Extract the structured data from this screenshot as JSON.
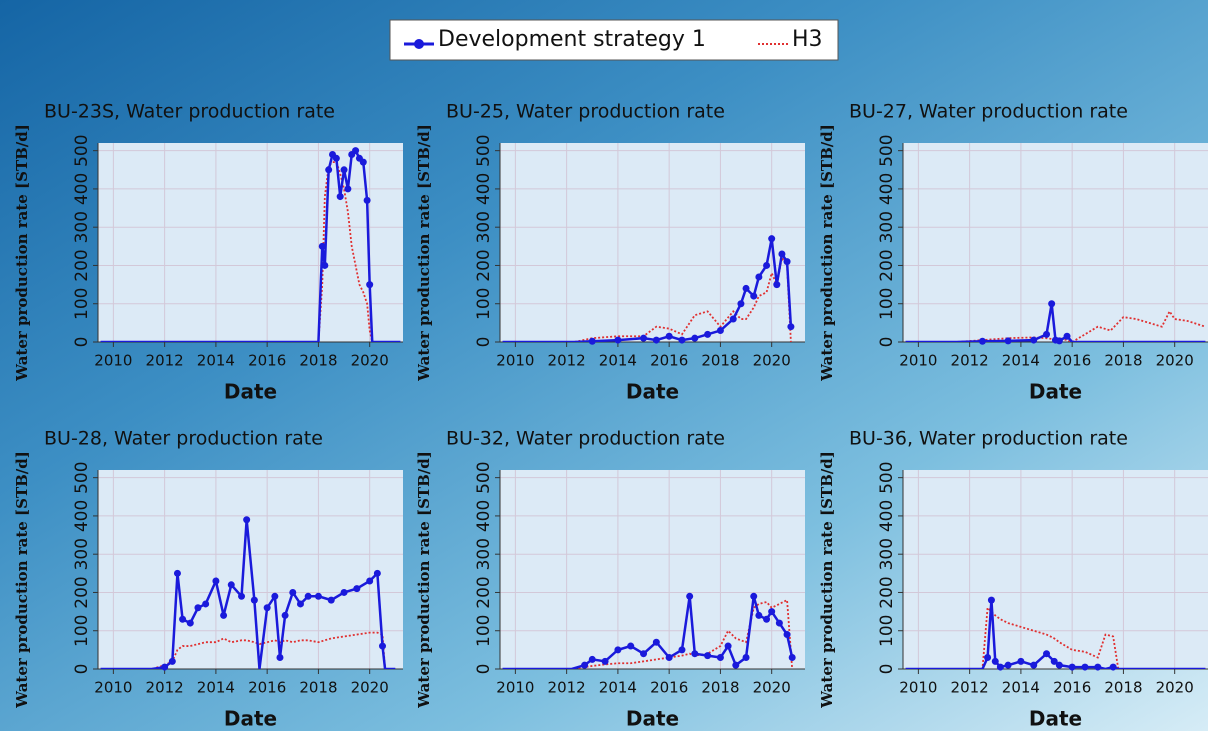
{
  "chart_data": [
    {
      "type": "line",
      "title": "BU-23S, Water production rate",
      "xlabel": "Date",
      "ylabel": "Water production rate [STB/d]",
      "x": [
        2009.5,
        2018.0,
        2018.15,
        2018.25,
        2018.4,
        2018.55,
        2018.7,
        2018.85,
        2019.0,
        2019.15,
        2019.3,
        2019.45,
        2019.6,
        2019.75,
        2019.9,
        2020.0,
        2020.1,
        2021.2
      ],
      "series": [
        {
          "name": "Development strategy 1",
          "color": "#1a1adb",
          "values": [
            0,
            0,
            250,
            200,
            450,
            490,
            480,
            380,
            450,
            400,
            490,
            500,
            480,
            470,
            370,
            150,
            0,
            0
          ]
        },
        {
          "name": "H3",
          "color": "#e03030",
          "values": [
            0,
            0,
            150,
            380,
            460,
            470,
            470,
            440,
            400,
            340,
            250,
            200,
            150,
            130,
            100,
            30,
            0,
            0
          ]
        }
      ],
      "xlim": [
        2009.4,
        2021.3
      ],
      "xticks": [
        2010,
        2012,
        2014,
        2016,
        2018,
        2020
      ],
      "ylim": [
        0,
        520
      ],
      "yticks": [
        0,
        100,
        200,
        300,
        400,
        500
      ],
      "grid": true
    },
    {
      "type": "line",
      "title": "BU-25, Water production rate",
      "xlabel": "Date",
      "ylabel": "Water production rate [STB/d]",
      "x": [
        2009.5,
        2012.3,
        2013,
        2014,
        2015,
        2015.5,
        2016,
        2016.5,
        2017,
        2017.5,
        2018,
        2018.5,
        2018.8,
        2019,
        2019.3,
        2019.5,
        2019.8,
        2020,
        2020.2,
        2020.4,
        2020.6,
        2020.75
      ],
      "series": [
        {
          "name": "Development strategy 1",
          "color": "#1a1adb",
          "values": [
            0,
            0,
            2,
            5,
            10,
            5,
            15,
            5,
            10,
            20,
            30,
            60,
            100,
            140,
            120,
            170,
            200,
            270,
            150,
            230,
            210,
            40
          ]
        },
        {
          "name": "H3",
          "color": "#e03030",
          "values": [
            0,
            0,
            10,
            15,
            15,
            40,
            35,
            20,
            70,
            80,
            40,
            80,
            60,
            60,
            90,
            120,
            130,
            180,
            150,
            220,
            200,
            0
          ]
        }
      ],
      "xlim": [
        2009.4,
        2021.3
      ],
      "xticks": [
        2010,
        2012,
        2014,
        2016,
        2018,
        2020
      ],
      "ylim": [
        0,
        520
      ],
      "yticks": [
        0,
        100,
        200,
        300,
        400,
        500
      ],
      "grid": true
    },
    {
      "type": "line",
      "title": "BU-27, Water production rate",
      "xlabel": "Date",
      "ylabel": "Water production rate [STB/d]",
      "x": [
        2009.5,
        2011.5,
        2012.5,
        2013.5,
        2014.5,
        2015.0,
        2015.2,
        2015.35,
        2015.5,
        2015.8,
        2016,
        2016.5,
        2017,
        2017.5,
        2018,
        2018.5,
        2019,
        2019.5,
        2019.8,
        2020,
        2020.5,
        2021.2
      ],
      "series": [
        {
          "name": "Development strategy 1",
          "color": "#1a1adb",
          "values": [
            0,
            0,
            2,
            3,
            5,
            20,
            100,
            5,
            3,
            15,
            0,
            0,
            0,
            0,
            0,
            0,
            0,
            0,
            0,
            0,
            0,
            0
          ]
        },
        {
          "name": "H3",
          "color": "#e03030",
          "values": [
            0,
            0,
            5,
            10,
            12,
            10,
            8,
            5,
            10,
            5,
            0,
            20,
            40,
            30,
            65,
            60,
            50,
            40,
            80,
            60,
            55,
            40
          ]
        }
      ],
      "xlim": [
        2009.4,
        2021.3
      ],
      "xticks": [
        2010,
        2012,
        2014,
        2016,
        2018,
        2020
      ],
      "ylim": [
        0,
        520
      ],
      "yticks": [
        0,
        100,
        200,
        300,
        400,
        500
      ],
      "grid": true
    },
    {
      "type": "line",
      "title": "BU-28, Water production rate",
      "xlabel": "Date",
      "ylabel": "Water production rate [STB/d]",
      "x": [
        2009.5,
        2011.5,
        2012,
        2012.3,
        2012.5,
        2012.7,
        2013,
        2013.3,
        2013.6,
        2014,
        2014.3,
        2014.6,
        2015,
        2015.2,
        2015.5,
        2015.7,
        2016,
        2016.3,
        2016.5,
        2016.7,
        2017,
        2017.3,
        2017.6,
        2018,
        2018.5,
        2019,
        2019.5,
        2020,
        2020.3,
        2020.5,
        2020.6,
        2021
      ],
      "series": [
        {
          "name": "Development strategy 1",
          "color": "#1a1adb",
          "values": [
            0,
            0,
            5,
            20,
            250,
            130,
            120,
            160,
            170,
            230,
            140,
            220,
            190,
            390,
            180,
            0,
            160,
            190,
            30,
            140,
            200,
            170,
            190,
            190,
            180,
            200,
            210,
            230,
            250,
            60,
            0,
            0
          ]
        },
        {
          "name": "H3",
          "color": "#e03030",
          "values": [
            0,
            0,
            10,
            20,
            50,
            60,
            60,
            65,
            70,
            70,
            80,
            70,
            75,
            75,
            70,
            65,
            70,
            75,
            70,
            75,
            70,
            75,
            75,
            70,
            80,
            85,
            90,
            95,
            95,
            90,
            0,
            0
          ]
        }
      ],
      "xlim": [
        2009.4,
        2021.3
      ],
      "xticks": [
        2010,
        2012,
        2014,
        2016,
        2018,
        2020
      ],
      "ylim": [
        0,
        520
      ],
      "yticks": [
        0,
        100,
        200,
        300,
        400,
        500
      ],
      "grid": true
    },
    {
      "type": "line",
      "title": "BU-32, Water production rate",
      "xlabel": "Date",
      "ylabel": "Water production rate [STB/d]",
      "x": [
        2009.5,
        2012.2,
        2012.7,
        2013,
        2013.5,
        2014,
        2014.5,
        2015,
        2015.5,
        2016,
        2016.5,
        2016.8,
        2017,
        2017.5,
        2018,
        2018.3,
        2018.6,
        2019,
        2019.3,
        2019.5,
        2019.8,
        2020,
        2020.3,
        2020.6,
        2020.8
      ],
      "series": [
        {
          "name": "Development strategy 1",
          "color": "#1a1adb",
          "values": [
            0,
            0,
            10,
            25,
            20,
            50,
            60,
            40,
            70,
            30,
            50,
            190,
            40,
            35,
            30,
            60,
            10,
            30,
            190,
            140,
            130,
            150,
            120,
            90,
            30
          ]
        },
        {
          "name": "H3",
          "color": "#e03030",
          "values": [
            0,
            0,
            5,
            8,
            12,
            15,
            15,
            20,
            25,
            30,
            35,
            40,
            35,
            40,
            60,
            100,
            80,
            70,
            160,
            170,
            175,
            160,
            170,
            180,
            0
          ]
        }
      ],
      "xlim": [
        2009.4,
        2021.3
      ],
      "xticks": [
        2010,
        2012,
        2014,
        2016,
        2018,
        2020
      ],
      "ylim": [
        0,
        520
      ],
      "yticks": [
        0,
        100,
        200,
        300,
        400,
        500
      ],
      "grid": true
    },
    {
      "type": "line",
      "title": "BU-36, Water production rate",
      "xlabel": "Date",
      "ylabel": "Water production rate [STB/d]",
      "x": [
        2009.5,
        2012.5,
        2012.7,
        2012.85,
        2013,
        2013.2,
        2013.5,
        2014,
        2014.5,
        2015,
        2015.3,
        2015.5,
        2016,
        2016.5,
        2017,
        2017.3,
        2017.6,
        2017.8,
        2021.2
      ],
      "series": [
        {
          "name": "Development strategy 1",
          "color": "#1a1adb",
          "values": [
            0,
            0,
            30,
            180,
            20,
            5,
            10,
            20,
            10,
            40,
            20,
            10,
            5,
            5,
            5,
            0,
            5,
            0,
            0
          ]
        },
        {
          "name": "H3",
          "color": "#e03030",
          "values": [
            0,
            0,
            160,
            150,
            140,
            130,
            120,
            110,
            100,
            90,
            80,
            70,
            50,
            45,
            30,
            90,
            85,
            0,
            0
          ]
        }
      ],
      "xlim": [
        2009.4,
        2021.3
      ],
      "xticks": [
        2010,
        2012,
        2014,
        2016,
        2018,
        2020
      ],
      "ylim": [
        0,
        520
      ],
      "yticks": [
        0,
        100,
        200,
        300,
        400,
        500
      ],
      "grid": true
    }
  ]
}
